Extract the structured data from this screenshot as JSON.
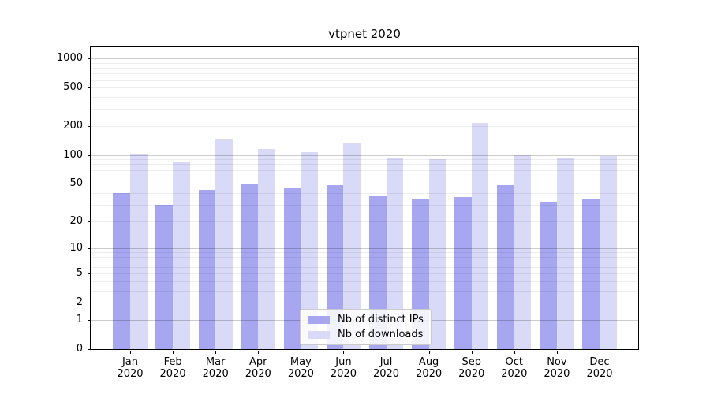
{
  "chart_data": {
    "type": "bar",
    "title": "vtpnet 2020",
    "yscale": "log1p",
    "grid": true,
    "legend_position": "lower center",
    "categories": [
      "Jan 2020",
      "Feb 2020",
      "Mar 2020",
      "Apr 2020",
      "May 2020",
      "Jun 2020",
      "Jul 2020",
      "Aug 2020",
      "Sep 2020",
      "Oct 2020",
      "Nov 2020",
      "Dec 2020"
    ],
    "series": [
      {
        "name": "Nb of distinct IPs",
        "color": "#a6a6f1",
        "values": [
          40,
          30,
          43,
          50,
          45,
          48,
          37,
          35,
          36,
          48,
          32,
          35
        ]
      },
      {
        "name": "Nb of downloads",
        "color": "#d9d9f8",
        "values": [
          102,
          85,
          145,
          116,
          108,
          131,
          94,
          90,
          215,
          100,
          94,
          97
        ]
      }
    ],
    "yticks": [
      0,
      1,
      2,
      5,
      10,
      20,
      50,
      100,
      200,
      500,
      1000
    ],
    "minor_gridline_values": [
      2,
      3,
      4,
      5,
      6,
      7,
      8,
      9,
      20,
      30,
      40,
      50,
      60,
      70,
      80,
      90,
      200,
      300,
      400,
      500,
      600,
      700,
      800,
      900
    ],
    "major_gridline_values": [
      1,
      10,
      100,
      1000
    ],
    "ylim": [
      0,
      1300
    ],
    "xlabel": "",
    "ylabel": ""
  },
  "colors": {
    "background": "#ffffff",
    "axis": "#000000",
    "major_grid_rgba": "rgba(0,0,0,0.20)",
    "minor_grid_rgba": "rgba(0,0,0,0.07)",
    "bar_distinct_ips": "#a6a6f1",
    "bar_downloads": "#d9d9f8"
  }
}
